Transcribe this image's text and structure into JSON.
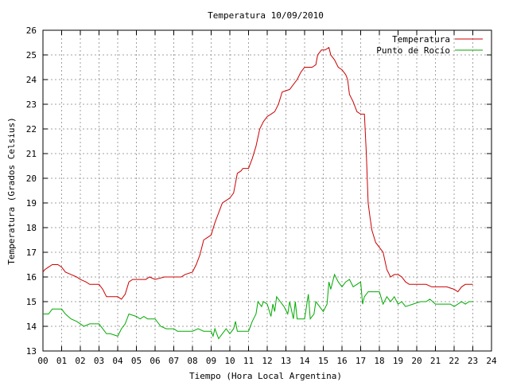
{
  "chart_data": {
    "type": "line",
    "title": "Temperatura 10/09/2010",
    "xlabel": "Tiempo (Hora Local Argentina)",
    "ylabel": "Temperatura (Grados Celsius)",
    "xlim": [
      0,
      24
    ],
    "ylim": [
      13,
      26
    ],
    "x_ticks": [
      "00",
      "01",
      "02",
      "03",
      "04",
      "05",
      "06",
      "07",
      "08",
      "09",
      "10",
      "11",
      "12",
      "13",
      "14",
      "15",
      "16",
      "17",
      "18",
      "19",
      "20",
      "21",
      "22",
      "23",
      "24"
    ],
    "y_ticks": [
      "13",
      "14",
      "15",
      "16",
      "17",
      "18",
      "19",
      "20",
      "21",
      "22",
      "23",
      "24",
      "25",
      "26"
    ],
    "grid": true,
    "legend_position": "top-right",
    "series": [
      {
        "name": "Temperatura",
        "color": "#cc0000",
        "points": [
          [
            0.0,
            16.2
          ],
          [
            0.1,
            16.3
          ],
          [
            0.3,
            16.4
          ],
          [
            0.5,
            16.5
          ],
          [
            0.8,
            16.5
          ],
          [
            1.0,
            16.4
          ],
          [
            1.2,
            16.2
          ],
          [
            1.5,
            16.1
          ],
          [
            1.8,
            16.0
          ],
          [
            2.0,
            15.9
          ],
          [
            2.3,
            15.8
          ],
          [
            2.5,
            15.7
          ],
          [
            3.0,
            15.7
          ],
          [
            3.2,
            15.5
          ],
          [
            3.4,
            15.2
          ],
          [
            3.6,
            15.2
          ],
          [
            4.0,
            15.2
          ],
          [
            4.2,
            15.1
          ],
          [
            4.4,
            15.3
          ],
          [
            4.6,
            15.8
          ],
          [
            4.8,
            15.9
          ],
          [
            5.0,
            15.9
          ],
          [
            5.5,
            15.9
          ],
          [
            5.7,
            16.0
          ],
          [
            6.0,
            15.9
          ],
          [
            6.5,
            16.0
          ],
          [
            7.0,
            16.0
          ],
          [
            7.4,
            16.0
          ],
          [
            7.6,
            16.1
          ],
          [
            8.0,
            16.2
          ],
          [
            8.2,
            16.5
          ],
          [
            8.4,
            16.9
          ],
          [
            8.6,
            17.5
          ],
          [
            8.8,
            17.6
          ],
          [
            9.0,
            17.7
          ],
          [
            9.2,
            18.2
          ],
          [
            9.4,
            18.6
          ],
          [
            9.6,
            19.0
          ],
          [
            9.8,
            19.1
          ],
          [
            10.0,
            19.2
          ],
          [
            10.2,
            19.4
          ],
          [
            10.3,
            19.8
          ],
          [
            10.4,
            20.2
          ],
          [
            10.6,
            20.3
          ],
          [
            10.7,
            20.4
          ],
          [
            11.0,
            20.4
          ],
          [
            11.2,
            20.8
          ],
          [
            11.4,
            21.3
          ],
          [
            11.6,
            22.0
          ],
          [
            11.8,
            22.3
          ],
          [
            12.0,
            22.5
          ],
          [
            12.2,
            22.6
          ],
          [
            12.4,
            22.7
          ],
          [
            12.6,
            23.0
          ],
          [
            12.8,
            23.5
          ],
          [
            13.2,
            23.6
          ],
          [
            13.4,
            23.8
          ],
          [
            13.6,
            24.0
          ],
          [
            13.8,
            24.3
          ],
          [
            14.0,
            24.5
          ],
          [
            14.4,
            24.5
          ],
          [
            14.6,
            24.6
          ],
          [
            14.7,
            25.0
          ],
          [
            14.9,
            25.2
          ],
          [
            15.1,
            25.2
          ],
          [
            15.3,
            25.3
          ],
          [
            15.4,
            25.0
          ],
          [
            15.6,
            24.8
          ],
          [
            15.8,
            24.5
          ],
          [
            16.0,
            24.4
          ],
          [
            16.2,
            24.2
          ],
          [
            16.3,
            24.0
          ],
          [
            16.4,
            23.4
          ],
          [
            16.6,
            23.1
          ],
          [
            16.8,
            22.7
          ],
          [
            17.0,
            22.6
          ],
          [
            17.2,
            22.6
          ],
          [
            17.3,
            21.0
          ],
          [
            17.4,
            19.0
          ],
          [
            17.5,
            18.4
          ],
          [
            17.6,
            17.9
          ],
          [
            17.8,
            17.4
          ],
          [
            18.0,
            17.2
          ],
          [
            18.2,
            17.0
          ],
          [
            18.4,
            16.3
          ],
          [
            18.6,
            16.0
          ],
          [
            18.8,
            16.1
          ],
          [
            19.0,
            16.1
          ],
          [
            19.2,
            16.0
          ],
          [
            19.4,
            15.8
          ],
          [
            19.6,
            15.7
          ],
          [
            20.0,
            15.7
          ],
          [
            20.5,
            15.7
          ],
          [
            20.8,
            15.6
          ],
          [
            21.2,
            15.6
          ],
          [
            21.6,
            15.6
          ],
          [
            22.0,
            15.5
          ],
          [
            22.2,
            15.4
          ],
          [
            22.4,
            15.6
          ],
          [
            22.6,
            15.7
          ],
          [
            23.0,
            15.7
          ]
        ]
      },
      {
        "name": "Punto de Rocío",
        "color": "#00aa00",
        "points": [
          [
            0.0,
            14.5
          ],
          [
            0.3,
            14.5
          ],
          [
            0.5,
            14.7
          ],
          [
            1.0,
            14.7
          ],
          [
            1.2,
            14.5
          ],
          [
            1.5,
            14.3
          ],
          [
            1.8,
            14.2
          ],
          [
            2.0,
            14.1
          ],
          [
            2.2,
            14.0
          ],
          [
            2.5,
            14.1
          ],
          [
            3.0,
            14.1
          ],
          [
            3.2,
            13.9
          ],
          [
            3.4,
            13.7
          ],
          [
            3.6,
            13.7
          ],
          [
            4.0,
            13.6
          ],
          [
            4.2,
            13.9
          ],
          [
            4.4,
            14.1
          ],
          [
            4.6,
            14.5
          ],
          [
            5.0,
            14.4
          ],
          [
            5.2,
            14.3
          ],
          [
            5.4,
            14.4
          ],
          [
            5.6,
            14.3
          ],
          [
            6.0,
            14.3
          ],
          [
            6.3,
            14.0
          ],
          [
            6.6,
            13.9
          ],
          [
            7.0,
            13.9
          ],
          [
            7.2,
            13.8
          ],
          [
            7.5,
            13.8
          ],
          [
            8.0,
            13.8
          ],
          [
            8.3,
            13.9
          ],
          [
            8.6,
            13.8
          ],
          [
            9.0,
            13.8
          ],
          [
            9.1,
            13.6
          ],
          [
            9.2,
            13.9
          ],
          [
            9.4,
            13.5
          ],
          [
            9.6,
            13.7
          ],
          [
            9.8,
            13.9
          ],
          [
            10.0,
            13.7
          ],
          [
            10.2,
            13.9
          ],
          [
            10.3,
            14.2
          ],
          [
            10.4,
            13.8
          ],
          [
            10.7,
            13.8
          ],
          [
            11.0,
            13.8
          ],
          [
            11.2,
            14.2
          ],
          [
            11.4,
            14.5
          ],
          [
            11.5,
            15.0
          ],
          [
            11.7,
            14.8
          ],
          [
            11.8,
            15.0
          ],
          [
            12.0,
            14.9
          ],
          [
            12.2,
            14.4
          ],
          [
            12.3,
            14.9
          ],
          [
            12.4,
            14.6
          ],
          [
            12.5,
            15.2
          ],
          [
            12.7,
            15.0
          ],
          [
            12.9,
            14.8
          ],
          [
            13.1,
            14.5
          ],
          [
            13.2,
            15.0
          ],
          [
            13.4,
            14.3
          ],
          [
            13.5,
            15.0
          ],
          [
            13.6,
            14.3
          ],
          [
            13.8,
            14.3
          ],
          [
            14.0,
            14.3
          ],
          [
            14.2,
            15.3
          ],
          [
            14.3,
            14.3
          ],
          [
            14.5,
            14.5
          ],
          [
            14.6,
            15.0
          ],
          [
            14.8,
            14.8
          ],
          [
            15.0,
            14.6
          ],
          [
            15.2,
            14.9
          ],
          [
            15.3,
            15.8
          ],
          [
            15.4,
            15.5
          ],
          [
            15.6,
            16.1
          ],
          [
            15.8,
            15.8
          ],
          [
            16.0,
            15.6
          ],
          [
            16.2,
            15.8
          ],
          [
            16.4,
            15.9
          ],
          [
            16.6,
            15.6
          ],
          [
            16.8,
            15.7
          ],
          [
            17.0,
            15.8
          ],
          [
            17.1,
            14.9
          ],
          [
            17.2,
            15.2
          ],
          [
            17.4,
            15.4
          ],
          [
            17.8,
            15.4
          ],
          [
            18.0,
            15.4
          ],
          [
            18.2,
            14.9
          ],
          [
            18.4,
            15.2
          ],
          [
            18.6,
            15.0
          ],
          [
            18.8,
            15.2
          ],
          [
            19.0,
            14.9
          ],
          [
            19.2,
            15.0
          ],
          [
            19.4,
            14.8
          ],
          [
            19.8,
            14.9
          ],
          [
            20.2,
            15.0
          ],
          [
            20.5,
            15.0
          ],
          [
            20.7,
            15.1
          ],
          [
            21.0,
            14.9
          ],
          [
            21.4,
            14.9
          ],
          [
            21.8,
            14.9
          ],
          [
            22.0,
            14.8
          ],
          [
            22.4,
            15.0
          ],
          [
            22.6,
            14.9
          ],
          [
            22.8,
            15.0
          ],
          [
            23.0,
            15.0
          ]
        ]
      }
    ]
  }
}
